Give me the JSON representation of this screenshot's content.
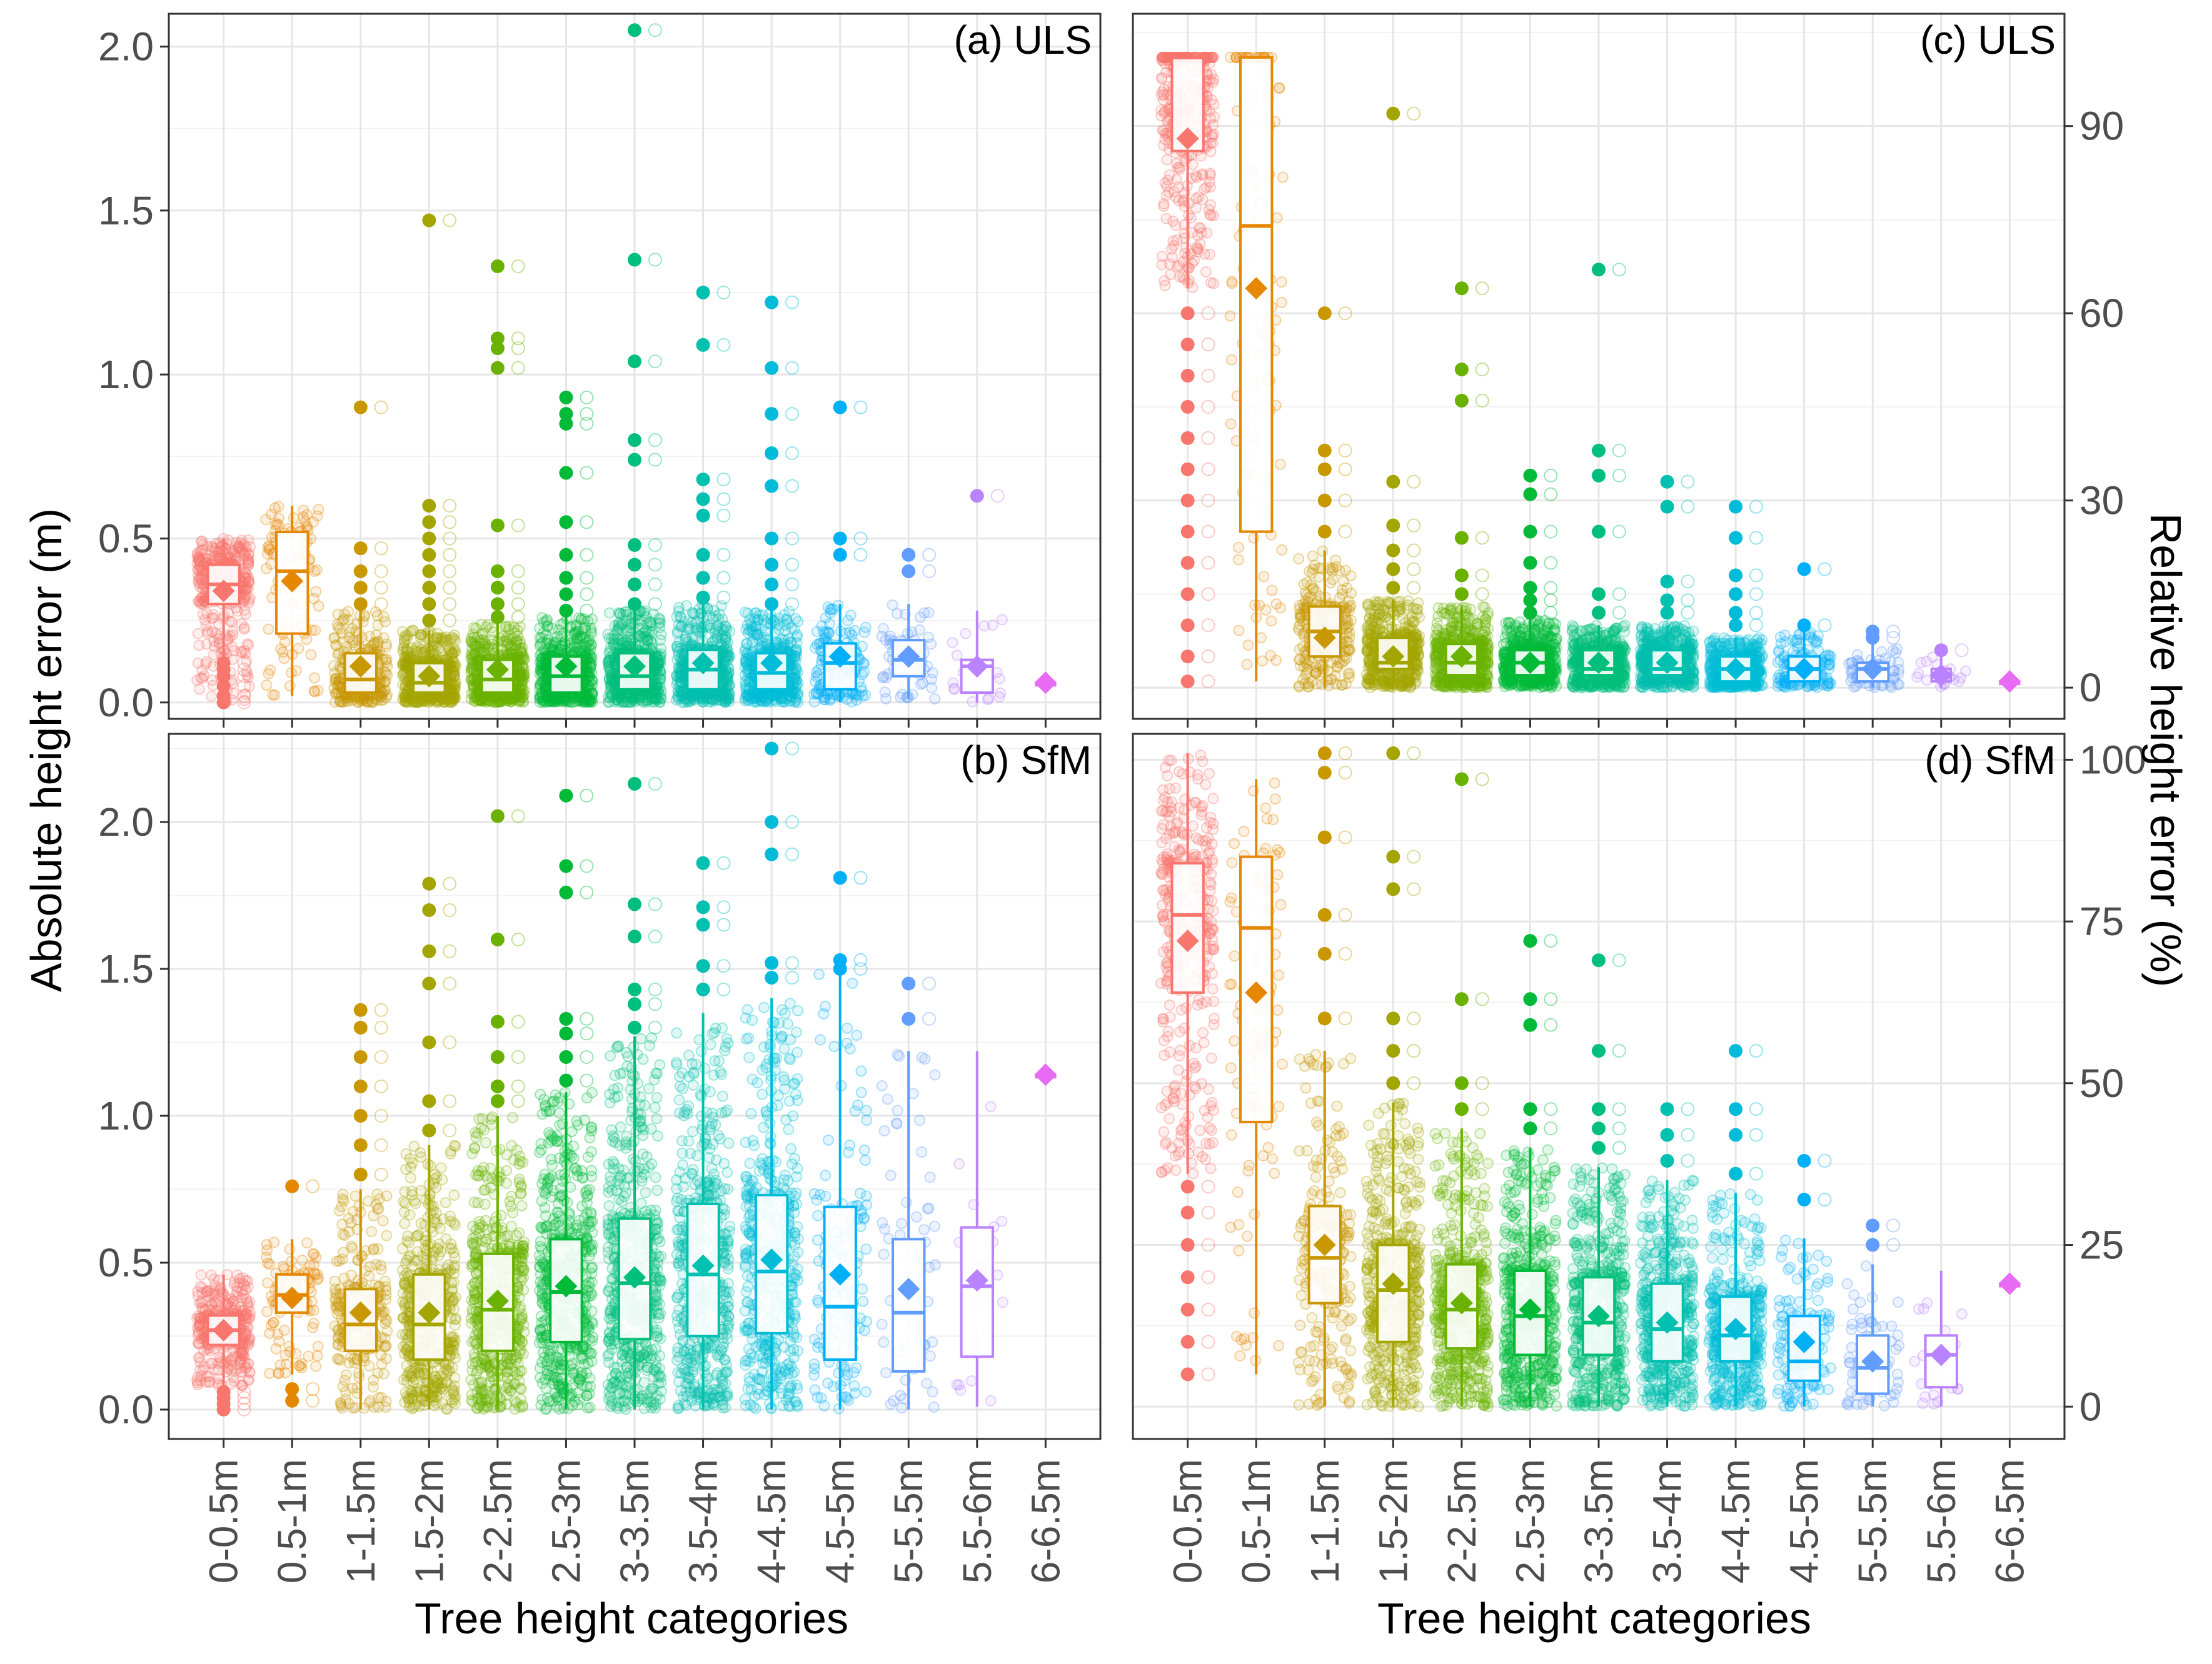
{
  "figure": {
    "x_title": "Tree height categories",
    "y_left_title": "Absolute height error (m)",
    "y_right_title": "Relative height error (%)"
  },
  "chart_data": [
    {
      "type": "box",
      "panel": "(a) ULS",
      "label": "(a) ULS",
      "metric": "absolute",
      "ylim": [
        -0.05,
        2.1
      ],
      "yticks": [
        0.0,
        0.5,
        1.0,
        1.5,
        2.0
      ],
      "ytick_labels": [
        "0.0",
        "0.5",
        "1.0",
        "1.5",
        "2.0"
      ],
      "categories": [
        "0-0.5m",
        "0.5-1m",
        "1-1.5m",
        "1.5-2m",
        "2-2.5m",
        "2.5-3m",
        "3-3.5m",
        "3.5-4m",
        "4-4.5m",
        "4.5-5m",
        "5-5.5m",
        "5.5-6m",
        "6-6.5m"
      ],
      "colors": [
        "#F8766D",
        "#E58700",
        "#C99800",
        "#A3A500",
        "#6BB100",
        "#00BA38",
        "#00BF7D",
        "#00C0AF",
        "#00BCD8",
        "#00B0F6",
        "#619CFF",
        "#B983FF",
        "#E76BF3"
      ],
      "boxes": [
        {
          "q1": 0.3,
          "median": 0.36,
          "q3": 0.42,
          "wlo": 0.0,
          "whi": 0.5,
          "mean": 0.34,
          "outliers": [
            0.0,
            0.02,
            0.05,
            0.08,
            0.1,
            0.12
          ]
        },
        {
          "q1": 0.21,
          "median": 0.4,
          "q3": 0.52,
          "wlo": 0.02,
          "whi": 0.6,
          "mean": 0.37,
          "outliers": []
        },
        {
          "q1": 0.03,
          "median": 0.07,
          "q3": 0.15,
          "wlo": 0.0,
          "whi": 0.28,
          "mean": 0.11,
          "outliers": [
            0.3,
            0.35,
            0.4,
            0.47,
            0.9
          ]
        },
        {
          "q1": 0.03,
          "median": 0.06,
          "q3": 0.12,
          "wlo": 0.0,
          "whi": 0.22,
          "mean": 0.08,
          "outliers": [
            0.25,
            0.3,
            0.35,
            0.4,
            0.45,
            0.5,
            0.55,
            0.6,
            1.47
          ]
        },
        {
          "q1": 0.03,
          "median": 0.07,
          "q3": 0.13,
          "wlo": 0.0,
          "whi": 0.24,
          "mean": 0.1,
          "outliers": [
            0.26,
            0.3,
            0.35,
            0.4,
            0.54,
            1.02,
            1.08,
            1.11,
            1.33
          ]
        },
        {
          "q1": 0.03,
          "median": 0.08,
          "q3": 0.14,
          "wlo": 0.0,
          "whi": 0.26,
          "mean": 0.11,
          "outliers": [
            0.28,
            0.33,
            0.38,
            0.45,
            0.55,
            0.7,
            0.85,
            0.88,
            0.93
          ]
        },
        {
          "q1": 0.04,
          "median": 0.08,
          "q3": 0.15,
          "wlo": 0.0,
          "whi": 0.28,
          "mean": 0.11,
          "outliers": [
            0.3,
            0.36,
            0.42,
            0.48,
            0.74,
            0.8,
            1.04,
            1.35,
            2.05
          ]
        },
        {
          "q1": 0.04,
          "median": 0.1,
          "q3": 0.16,
          "wlo": 0.0,
          "whi": 0.3,
          "mean": 0.12,
          "outliers": [
            0.32,
            0.38,
            0.45,
            0.57,
            0.62,
            0.68,
            1.09,
            1.25
          ]
        },
        {
          "q1": 0.04,
          "median": 0.09,
          "q3": 0.15,
          "wlo": 0.0,
          "whi": 0.28,
          "mean": 0.12,
          "outliers": [
            0.3,
            0.36,
            0.42,
            0.5,
            0.66,
            0.76,
            0.88,
            1.02,
            1.22
          ]
        },
        {
          "q1": 0.04,
          "median": 0.12,
          "q3": 0.18,
          "wlo": 0.0,
          "whi": 0.3,
          "mean": 0.14,
          "outliers": [
            0.45,
            0.5,
            0.9
          ]
        },
        {
          "q1": 0.08,
          "median": 0.13,
          "q3": 0.19,
          "wlo": 0.01,
          "whi": 0.3,
          "mean": 0.14,
          "outliers": [
            0.4,
            0.45
          ]
        },
        {
          "q1": 0.03,
          "median": 0.11,
          "q3": 0.13,
          "wlo": 0.0,
          "whi": 0.28,
          "mean": 0.11,
          "outliers": [
            0.63
          ]
        },
        {
          "q1": 0.06,
          "median": 0.06,
          "q3": 0.06,
          "wlo": 0.06,
          "whi": 0.06,
          "mean": 0.06,
          "outliers": []
        }
      ]
    },
    {
      "type": "box",
      "panel": "(b) SfM",
      "label": "(b) SfM",
      "metric": "absolute",
      "ylim": [
        -0.1,
        2.3
      ],
      "yticks": [
        0.0,
        0.5,
        1.0,
        1.5,
        2.0
      ],
      "ytick_labels": [
        "0.0",
        "0.5",
        "1.0",
        "1.5",
        "2.0"
      ],
      "categories": [
        "0-0.5m",
        "0.5-1m",
        "1-1.5m",
        "1.5-2m",
        "2-2.5m",
        "2.5-3m",
        "3-3.5m",
        "3.5-4m",
        "4-4.5m",
        "4.5-5m",
        "5-5.5m",
        "5.5-6m",
        "6-6.5m"
      ],
      "colors": [
        "#F8766D",
        "#E58700",
        "#C99800",
        "#A3A500",
        "#6BB100",
        "#00BA38",
        "#00BF7D",
        "#00C0AF",
        "#00BCD8",
        "#00B0F6",
        "#619CFF",
        "#B983FF",
        "#E76BF3"
      ],
      "boxes": [
        {
          "q1": 0.22,
          "median": 0.27,
          "q3": 0.32,
          "wlo": 0.08,
          "whi": 0.46,
          "mean": 0.27,
          "outliers": [
            0.0,
            0.02,
            0.04,
            0.06
          ]
        },
        {
          "q1": 0.33,
          "median": 0.39,
          "q3": 0.46,
          "wlo": 0.12,
          "whi": 0.58,
          "mean": 0.38,
          "outliers": [
            0.03,
            0.07,
            0.76
          ]
        },
        {
          "q1": 0.2,
          "median": 0.29,
          "q3": 0.41,
          "wlo": 0.0,
          "whi": 0.75,
          "mean": 0.33,
          "outliers": [
            0.8,
            0.9,
            1.0,
            1.1,
            1.2,
            1.3,
            1.36
          ]
        },
        {
          "q1": 0.17,
          "median": 0.29,
          "q3": 0.46,
          "wlo": 0.0,
          "whi": 0.9,
          "mean": 0.33,
          "outliers": [
            0.95,
            1.05,
            1.25,
            1.45,
            1.56,
            1.7,
            1.79
          ]
        },
        {
          "q1": 0.2,
          "median": 0.34,
          "q3": 0.53,
          "wlo": 0.0,
          "whi": 1.0,
          "mean": 0.37,
          "outliers": [
            1.05,
            1.1,
            1.2,
            1.32,
            1.6,
            2.02
          ]
        },
        {
          "q1": 0.23,
          "median": 0.4,
          "q3": 0.58,
          "wlo": 0.0,
          "whi": 1.08,
          "mean": 0.42,
          "outliers": [
            1.12,
            1.2,
            1.28,
            1.33,
            1.76,
            1.85,
            2.09
          ]
        },
        {
          "q1": 0.24,
          "median": 0.43,
          "q3": 0.65,
          "wlo": 0.0,
          "whi": 1.27,
          "mean": 0.45,
          "outliers": [
            1.3,
            1.38,
            1.43,
            1.61,
            1.72,
            2.13
          ]
        },
        {
          "q1": 0.25,
          "median": 0.46,
          "q3": 0.7,
          "wlo": 0.0,
          "whi": 1.35,
          "mean": 0.49,
          "outliers": [
            1.43,
            1.51,
            1.65,
            1.71,
            1.86
          ]
        },
        {
          "q1": 0.26,
          "median": 0.47,
          "q3": 0.73,
          "wlo": 0.0,
          "whi": 1.4,
          "mean": 0.51,
          "outliers": [
            1.47,
            1.52,
            1.89,
            2.0,
            2.25
          ]
        },
        {
          "q1": 0.17,
          "median": 0.35,
          "q3": 0.69,
          "wlo": 0.0,
          "whi": 1.49,
          "mean": 0.46,
          "outliers": [
            1.5,
            1.53,
            1.81
          ]
        },
        {
          "q1": 0.13,
          "median": 0.33,
          "q3": 0.58,
          "wlo": 0.0,
          "whi": 1.22,
          "mean": 0.41,
          "outliers": [
            1.33,
            1.45
          ]
        },
        {
          "q1": 0.18,
          "median": 0.42,
          "q3": 0.62,
          "wlo": 0.01,
          "whi": 1.22,
          "mean": 0.44,
          "outliers": []
        },
        {
          "q1": 1.14,
          "median": 1.14,
          "q3": 1.14,
          "wlo": 1.14,
          "whi": 1.14,
          "mean": 1.14,
          "outliers": []
        }
      ]
    },
    {
      "type": "box",
      "panel": "(c) ULS",
      "label": "(c) ULS",
      "metric": "relative",
      "ylim": [
        -5,
        108
      ],
      "yticks": [
        0,
        30,
        60,
        90
      ],
      "ytick_labels": [
        "0",
        "30",
        "60",
        "90"
      ],
      "categories": [
        "0-0.5m",
        "0.5-1m",
        "1-1.5m",
        "1.5-2m",
        "2-2.5m",
        "2.5-3m",
        "3-3.5m",
        "3.5-4m",
        "4-4.5m",
        "4.5-5m",
        "5-5.5m",
        "5.5-6m",
        "6-6.5m"
      ],
      "colors": [
        "#F8766D",
        "#E58700",
        "#C99800",
        "#A3A500",
        "#6BB100",
        "#00BA38",
        "#00BF7D",
        "#00C0AF",
        "#00BCD8",
        "#00B0F6",
        "#619CFF",
        "#B983FF",
        "#E76BF3"
      ],
      "boxes": [
        {
          "q1": 86,
          "median": 101,
          "q3": 101,
          "wlo": 64,
          "whi": 101,
          "mean": 88,
          "outliers": [
            1,
            5,
            10,
            15,
            20,
            25,
            30,
            35,
            40,
            45,
            50,
            55,
            60
          ]
        },
        {
          "q1": 25,
          "median": 74,
          "q3": 101,
          "wlo": 1,
          "whi": 101,
          "mean": 64,
          "outliers": []
        },
        {
          "q1": 5,
          "median": 9,
          "q3": 13,
          "wlo": 0,
          "whi": 22,
          "mean": 8,
          "outliers": [
            25,
            30,
            35,
            38,
            60
          ]
        },
        {
          "q1": 3,
          "median": 4,
          "q3": 8,
          "wlo": 0,
          "whi": 14,
          "mean": 5,
          "outliers": [
            16,
            19,
            22,
            26,
            33,
            92
          ]
        },
        {
          "q1": 2,
          "median": 4,
          "q3": 7,
          "wlo": 0,
          "whi": 13,
          "mean": 5,
          "outliers": [
            15,
            18,
            24,
            46,
            51,
            64
          ]
        },
        {
          "q1": 2,
          "median": 4,
          "q3": 6,
          "wlo": 0,
          "whi": 11,
          "mean": 4,
          "outliers": [
            12,
            14,
            16,
            20,
            25,
            31,
            34
          ]
        },
        {
          "q1": 2,
          "median": 3,
          "q3": 6,
          "wlo": 0,
          "whi": 10,
          "mean": 4,
          "outliers": [
            12,
            15,
            25,
            34,
            38,
            67
          ]
        },
        {
          "q1": 2,
          "median": 3,
          "q3": 6,
          "wlo": 0,
          "whi": 10,
          "mean": 4,
          "outliers": [
            12,
            14,
            17,
            29,
            33
          ]
        },
        {
          "q1": 1,
          "median": 3,
          "q3": 5,
          "wlo": 0,
          "whi": 8,
          "mean": 3,
          "outliers": [
            10,
            12,
            15,
            18,
            24,
            29
          ]
        },
        {
          "q1": 1,
          "median": 3,
          "q3": 5,
          "wlo": 0,
          "whi": 9,
          "mean": 3,
          "outliers": [
            10,
            19
          ]
        },
        {
          "q1": 1,
          "median": 3,
          "q3": 4,
          "wlo": 0,
          "whi": 7,
          "mean": 3,
          "outliers": [
            8,
            9
          ]
        },
        {
          "q1": 1,
          "median": 2,
          "q3": 3,
          "wlo": 0,
          "whi": 5,
          "mean": 2,
          "outliers": [
            6
          ]
        },
        {
          "q1": 1,
          "median": 1,
          "q3": 1,
          "wlo": 1,
          "whi": 1,
          "mean": 1,
          "outliers": []
        }
      ]
    },
    {
      "type": "box",
      "panel": "(d) SfM",
      "label": "(d) SfM",
      "metric": "relative",
      "ylim": [
        -5,
        104
      ],
      "yticks": [
        0,
        25,
        50,
        75,
        100
      ],
      "ytick_labels": [
        "0",
        "25",
        "50",
        "75",
        "100"
      ],
      "categories": [
        "0-0.5m",
        "0.5-1m",
        "1-1.5m",
        "1.5-2m",
        "2-2.5m",
        "2.5-3m",
        "3-3.5m",
        "3.5-4m",
        "4-4.5m",
        "4.5-5m",
        "5-5.5m",
        "5.5-6m",
        "6-6.5m"
      ],
      "colors": [
        "#F8766D",
        "#E58700",
        "#C99800",
        "#A3A500",
        "#6BB100",
        "#00BA38",
        "#00BF7D",
        "#00C0AF",
        "#00BCD8",
        "#00B0F6",
        "#619CFF",
        "#B983FF",
        "#E76BF3"
      ],
      "boxes": [
        {
          "q1": 64,
          "median": 76,
          "q3": 84,
          "wlo": 36,
          "whi": 101,
          "mean": 72,
          "outliers": [
            5,
            10,
            15,
            20,
            25,
            30,
            34
          ]
        },
        {
          "q1": 44,
          "median": 74,
          "q3": 85,
          "wlo": 5,
          "whi": 97,
          "mean": 64,
          "outliers": []
        },
        {
          "q1": 16,
          "median": 23,
          "q3": 31,
          "wlo": 0,
          "whi": 55,
          "mean": 25,
          "outliers": [
            60,
            70,
            76,
            88,
            98,
            101
          ]
        },
        {
          "q1": 10,
          "median": 18,
          "q3": 25,
          "wlo": 0,
          "whi": 47,
          "mean": 19,
          "outliers": [
            50,
            55,
            60,
            80,
            85,
            101
          ]
        },
        {
          "q1": 9,
          "median": 15,
          "q3": 22,
          "wlo": 0,
          "whi": 43,
          "mean": 16,
          "outliers": [
            46,
            50,
            63,
            97
          ]
        },
        {
          "q1": 8,
          "median": 14,
          "q3": 21,
          "wlo": 0,
          "whi": 40,
          "mean": 15,
          "outliers": [
            43,
            46,
            59,
            63,
            72
          ]
        },
        {
          "q1": 8,
          "median": 13,
          "q3": 20,
          "wlo": 0,
          "whi": 37,
          "mean": 14,
          "outliers": [
            40,
            43,
            46,
            55,
            69
          ]
        },
        {
          "q1": 7,
          "median": 12,
          "q3": 19,
          "wlo": 0,
          "whi": 35,
          "mean": 13,
          "outliers": [
            38,
            42,
            46
          ]
        },
        {
          "q1": 7,
          "median": 11,
          "q3": 17,
          "wlo": 0,
          "whi": 33,
          "mean": 12,
          "outliers": [
            36,
            42,
            46,
            55
          ]
        },
        {
          "q1": 4,
          "median": 7,
          "q3": 14,
          "wlo": 0,
          "whi": 26,
          "mean": 10,
          "outliers": [
            32,
            38
          ]
        },
        {
          "q1": 2,
          "median": 6,
          "q3": 11,
          "wlo": 0,
          "whi": 22,
          "mean": 7,
          "outliers": [
            25,
            28
          ]
        },
        {
          "q1": 3,
          "median": 8,
          "q3": 11,
          "wlo": 0,
          "whi": 21,
          "mean": 8,
          "outliers": []
        },
        {
          "q1": 19,
          "median": 19,
          "q3": 19,
          "wlo": 19,
          "whi": 19,
          "mean": 19,
          "outliers": []
        }
      ]
    }
  ]
}
